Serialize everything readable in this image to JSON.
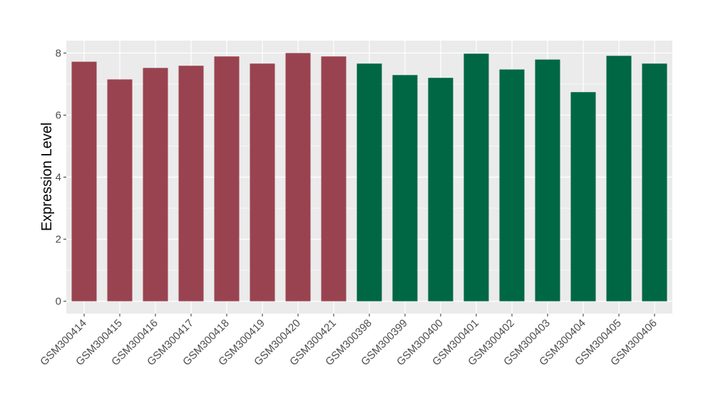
{
  "chart_data": {
    "type": "bar",
    "title": "",
    "xlabel": "",
    "ylabel": "Expression Level",
    "ylim": [
      -0.4,
      8.4
    ],
    "yticks": [
      0,
      2,
      4,
      6,
      8
    ],
    "grid": true,
    "categories": [
      "GSM300414",
      "GSM300415",
      "GSM300416",
      "GSM300417",
      "GSM300418",
      "GSM300419",
      "GSM300420",
      "GSM300421",
      "GSM300398",
      "GSM300399",
      "GSM300400",
      "GSM300401",
      "GSM300402",
      "GSM300403",
      "GSM300404",
      "GSM300405",
      "GSM300406"
    ],
    "values": [
      7.72,
      7.15,
      7.52,
      7.59,
      7.89,
      7.66,
      8.0,
      7.89,
      7.66,
      7.29,
      7.2,
      7.98,
      7.47,
      7.79,
      6.74,
      7.91,
      7.66
    ],
    "groups": [
      0,
      0,
      0,
      0,
      0,
      0,
      0,
      0,
      1,
      1,
      1,
      1,
      1,
      1,
      1,
      1,
      1
    ],
    "group_colors": [
      "#9a4350",
      "#006745"
    ]
  }
}
